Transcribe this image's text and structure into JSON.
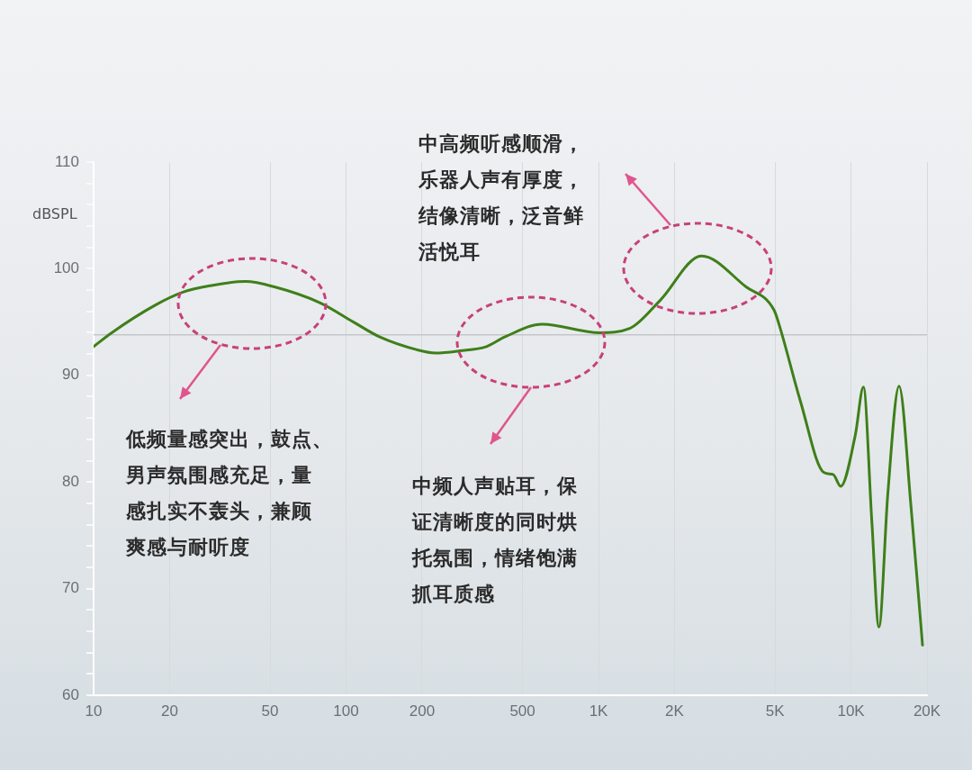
{
  "chart_data": {
    "type": "line",
    "ylabel": "dBSPL",
    "x": [
      10,
      11.8,
      17.6,
      22.6,
      28.9,
      40,
      52,
      79,
      107,
      136,
      191,
      226,
      282,
      360,
      425,
      599,
      1010,
      1330,
      1750,
      2560,
      3840,
      4960,
      5200,
      6300,
      7800,
      8500,
      9100,
      10400,
      11200,
      12100,
      12900,
      14000,
      15500,
      17300,
      19200
    ],
    "series": [
      {
        "color": "#3f7f1a",
        "values": [
          92.7,
          94.0,
          96.6,
          97.8,
          98.4,
          98.8,
          98.3,
          96.8,
          95.0,
          93.6,
          92.4,
          92.1,
          92.3,
          92.7,
          93.6,
          94.8,
          94.0,
          94.4,
          97.0,
          101.2,
          98.3,
          96.1,
          94.7,
          87.6,
          80.9,
          80.7,
          79.6,
          84.4,
          88.9,
          76.2,
          66.4,
          79.0,
          89.0,
          77.6,
          64.7
        ]
      }
    ],
    "log": "x",
    "xlim": [
      10,
      20000
    ],
    "xticks": [
      10,
      20,
      50,
      100,
      200,
      500,
      {
        "value": 1000,
        "label": "1K"
      },
      {
        "value": 2000,
        "label": "2K"
      },
      {
        "value": 5000,
        "label": "5K"
      },
      {
        "value": 10000,
        "label": "10K"
      },
      {
        "value": 20000,
        "label": "20K"
      }
    ],
    "ylim": [
      60,
      110
    ],
    "yticks": [
      60,
      {
        "value": 62,
        "label": null
      },
      {
        "value": 64,
        "label": null
      },
      {
        "value": 66,
        "label": null
      },
      {
        "value": 68,
        "label": null
      },
      70,
      {
        "value": 72,
        "label": null
      },
      {
        "value": 74,
        "label": null
      },
      {
        "value": 76,
        "label": null
      },
      {
        "value": 78,
        "label": null
      },
      80,
      {
        "value": 82,
        "label": null
      },
      {
        "value": 84,
        "label": null
      },
      {
        "value": 86,
        "label": null
      },
      {
        "value": 88,
        "label": null
      },
      90,
      {
        "value": 92,
        "label": null
      },
      {
        "value": 94,
        "label": null
      },
      {
        "value": 96,
        "label": null
      },
      {
        "value": 98,
        "label": null
      },
      100,
      {
        "value": 102,
        "label": null
      },
      {
        "value": 104,
        "label": null
      },
      {
        "value": 106,
        "label": null
      },
      {
        "value": 108,
        "label": null
      },
      110
    ],
    "grid": "x",
    "marker": "none",
    "line_style": "solid",
    "ref_lines": [
      {
        "axis": "y",
        "value": 93.8,
        "color": "#c4c6c8"
      }
    ],
    "annotations": [
      "中高频听感顺滑，乐器人声有厚度，结像清晰，泛音鲜活悦耳",
      "低频量感突出，鼓点、男声氛围感充足，量感扎实不轰头，兼顾爽感与耐听度",
      "中频人声贴耳，保证清晰度的同时烘托氛围，情绪饱满抓耳质感"
    ]
  }
}
